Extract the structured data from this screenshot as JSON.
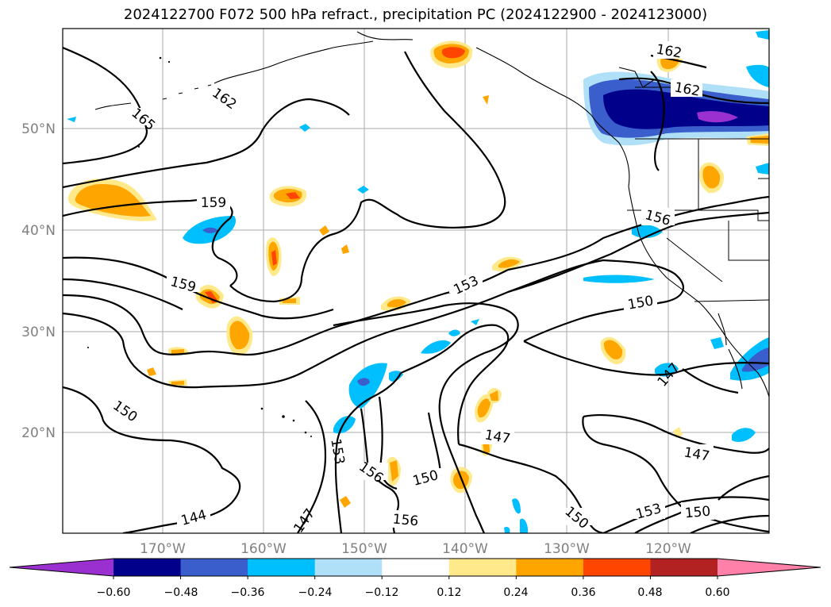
{
  "title": "2024122700 F072 500 hPa refract., precipitation PC (2024122900 - 2024123000)",
  "map": {
    "lat_labels": [
      "50°N",
      "40°N",
      "30°N",
      "20°N"
    ],
    "lon_labels": [
      "170°W",
      "160°W",
      "150°W",
      "140°W",
      "130°W",
      "120°W"
    ],
    "gridlines": true,
    "contour_labels": [
      "162",
      "165",
      "159",
      "159",
      "150",
      "144",
      "147",
      "153",
      "156",
      "156",
      "150",
      "153",
      "147",
      "147",
      "150",
      "153",
      "150",
      "150",
      "147",
      "156",
      "162",
      "162"
    ]
  },
  "colorbar": {
    "ticks": [
      "−0.60",
      "−0.48",
      "−0.36",
      "−0.24",
      "−0.12",
      "0.12",
      "0.24",
      "0.36",
      "0.48",
      "0.60"
    ],
    "colors": [
      "#9b30d0",
      "#00008b",
      "#3a5fcd",
      "#00bfff",
      "#b0e0f8",
      "#ffffff",
      "#ffe98a",
      "#ffa500",
      "#ff4500",
      "#b22222",
      "#ff80a8"
    ],
    "extend": "both"
  }
}
